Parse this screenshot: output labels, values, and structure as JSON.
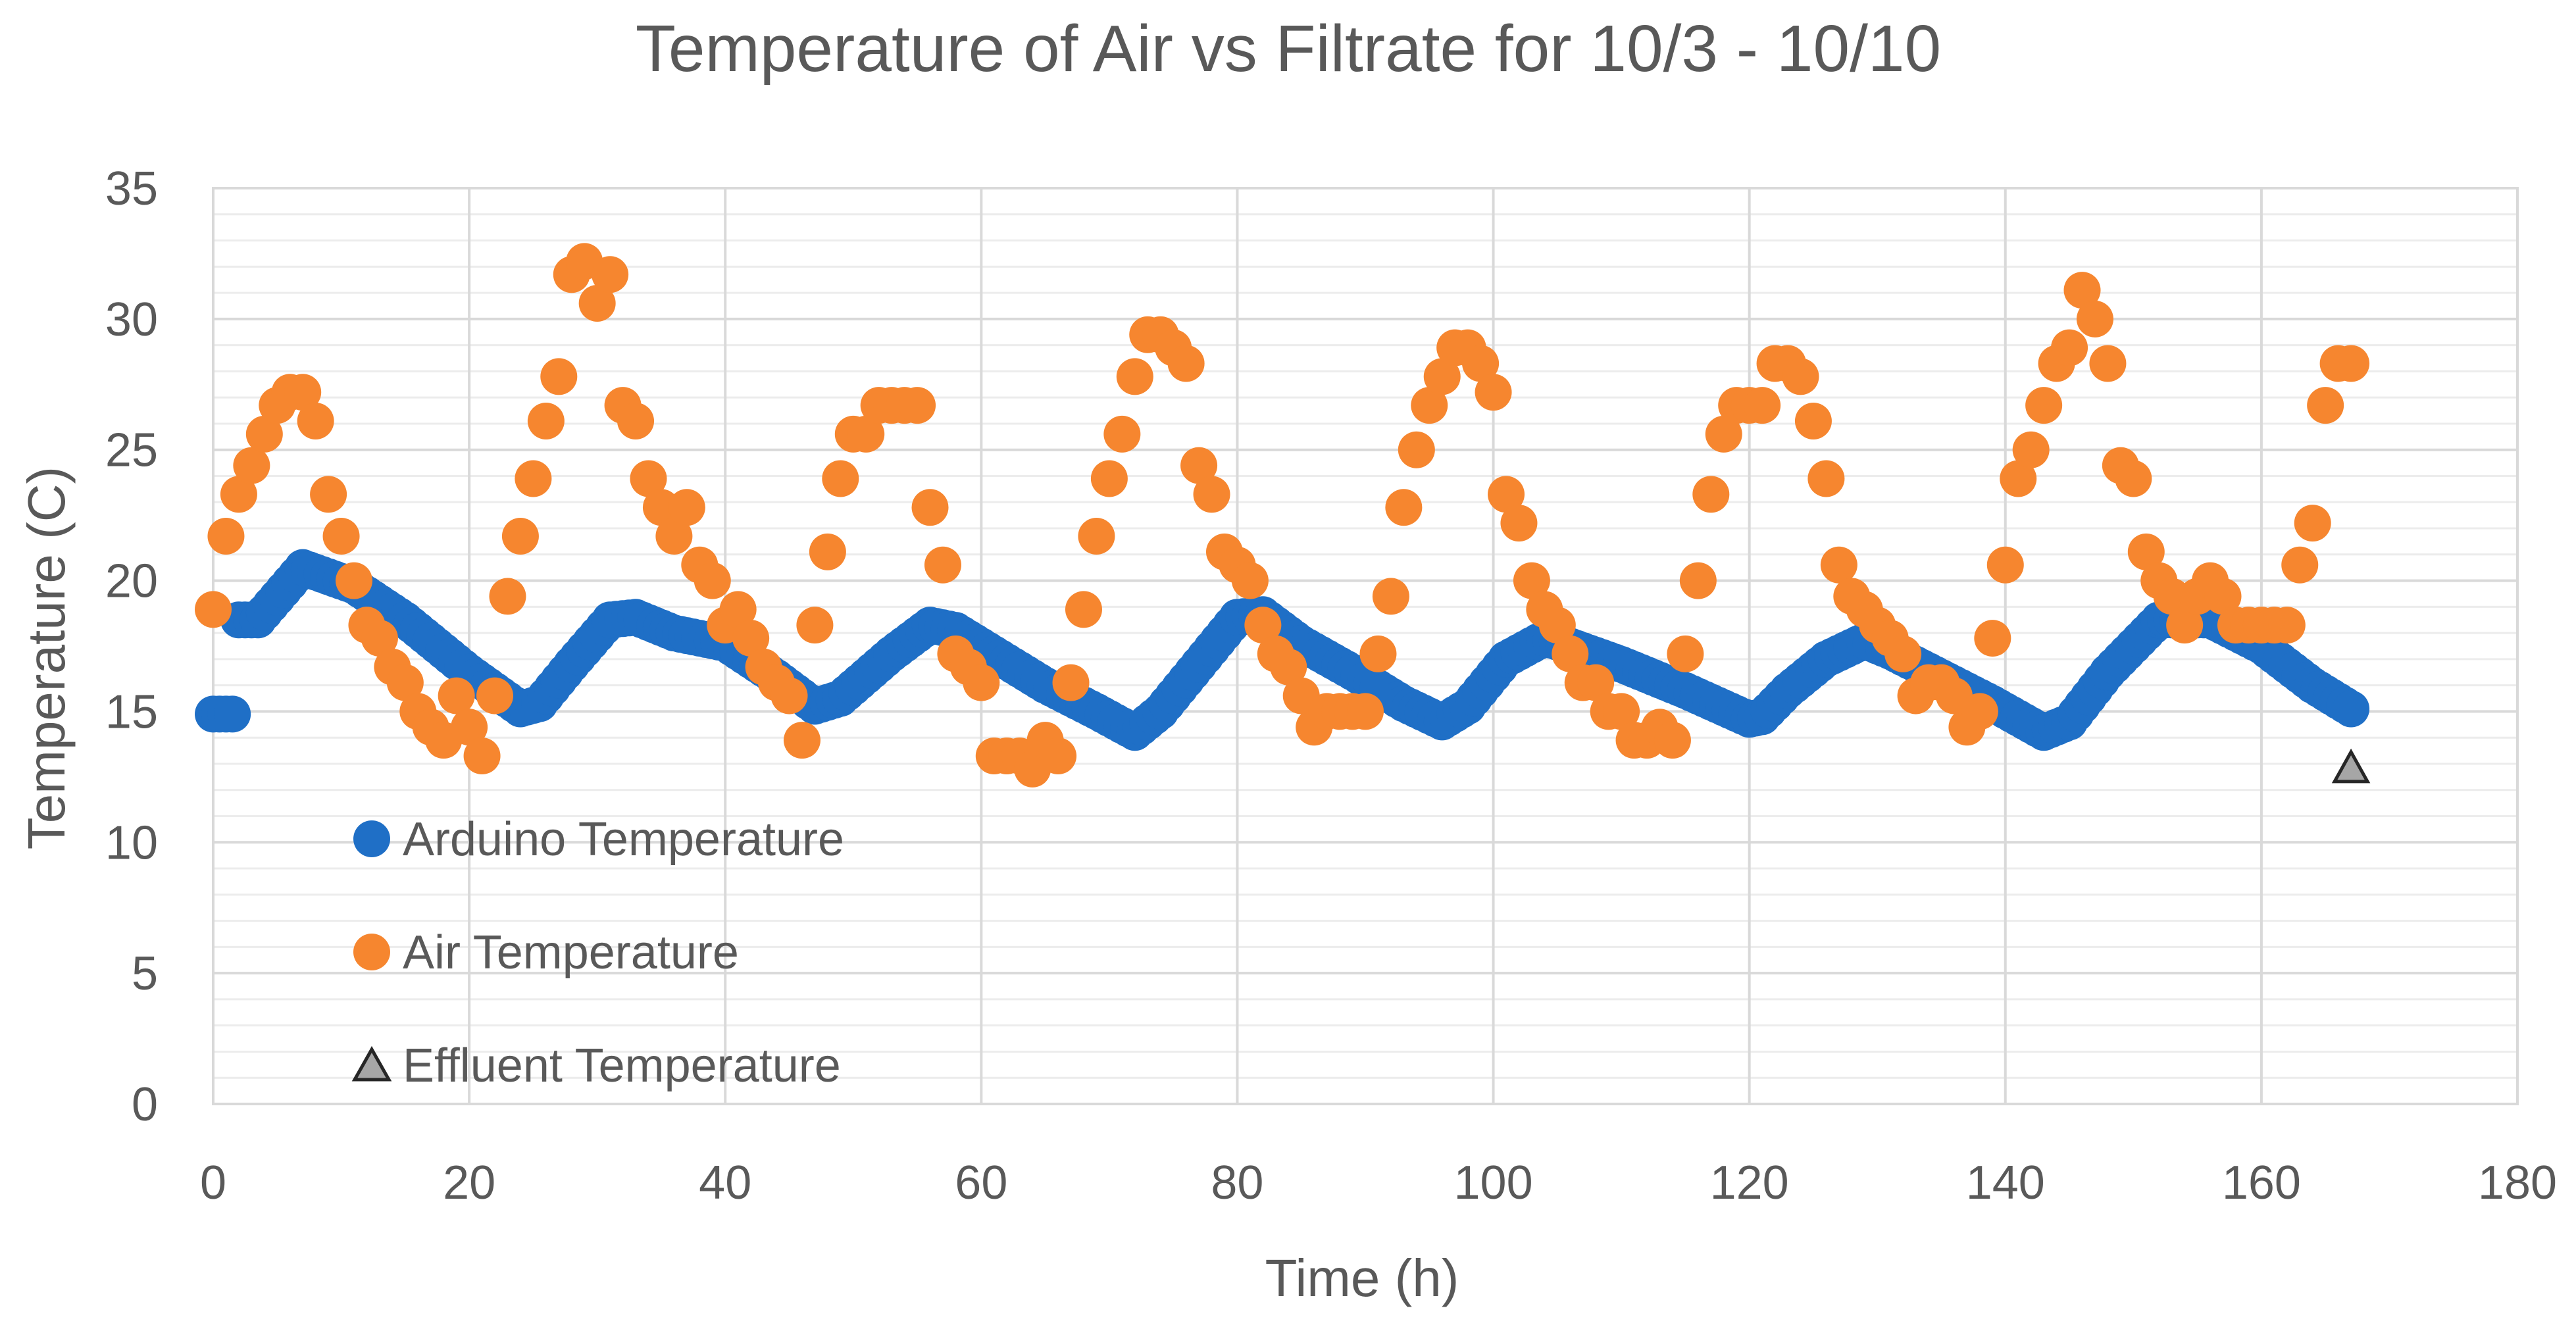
{
  "chart_data": {
    "type": "scatter",
    "title": "Temperature of Air vs Filtrate for 10/3 - 10/10",
    "xlabel": "Time (h)",
    "ylabel": "Temperature (C)",
    "xlim": [
      0,
      180
    ],
    "ylim": [
      0,
      35
    ],
    "x_ticks": [
      "0",
      "20",
      "40",
      "60",
      "80",
      "100",
      "120",
      "140",
      "160",
      "180"
    ],
    "y_ticks": [
      "0",
      "5",
      "10",
      "15",
      "20",
      "25",
      "30",
      "35"
    ],
    "major_grid": true,
    "minor_grid": true,
    "legend_position": "bottom-left inside",
    "colors": {
      "arduino": "#1f6fc6",
      "air": "#f6862f",
      "effluent_fill": "#a6a6a6",
      "effluent_stroke": "#262626",
      "grid_major": "#d9d9d9",
      "grid_minor": "#ececec",
      "text": "#595959"
    },
    "series": [
      {
        "name": "Arduino Temperature",
        "marker": "circle",
        "keypoints": [
          [
            0,
            14.9
          ],
          [
            1.5,
            14.9
          ],
          [
            2,
            18.5
          ],
          [
            3.5,
            18.5
          ],
          [
            7,
            20.5
          ],
          [
            11,
            19.8
          ],
          [
            15,
            18.5
          ],
          [
            20,
            16.5
          ],
          [
            24,
            15.1
          ],
          [
            25.5,
            15.3
          ],
          [
            28,
            16.8
          ],
          [
            31,
            18.5
          ],
          [
            33,
            18.6
          ],
          [
            36,
            18.0
          ],
          [
            40,
            17.6
          ],
          [
            44,
            16.3
          ],
          [
            47,
            15.2
          ],
          [
            49,
            15.5
          ],
          [
            53,
            17.2
          ],
          [
            56,
            18.3
          ],
          [
            58,
            18.1
          ],
          [
            61,
            17.2
          ],
          [
            65,
            16.0
          ],
          [
            69,
            15.0
          ],
          [
            72,
            14.2
          ],
          [
            74,
            15.0
          ],
          [
            77,
            16.8
          ],
          [
            80,
            18.6
          ],
          [
            82,
            18.7
          ],
          [
            85,
            17.6
          ],
          [
            89,
            16.5
          ],
          [
            93,
            15.3
          ],
          [
            96,
            14.6
          ],
          [
            98,
            15.2
          ],
          [
            101,
            17.0
          ],
          [
            104,
            17.8
          ],
          [
            106,
            17.5
          ],
          [
            110,
            16.8
          ],
          [
            115,
            15.8
          ],
          [
            120,
            14.7
          ],
          [
            121,
            14.8
          ],
          [
            123,
            15.8
          ],
          [
            126,
            17.0
          ],
          [
            129,
            17.7
          ],
          [
            131,
            17.3
          ],
          [
            135,
            16.3
          ],
          [
            139,
            15.3
          ],
          [
            143,
            14.2
          ],
          [
            145,
            14.6
          ],
          [
            148,
            16.5
          ],
          [
            152,
            18.5
          ],
          [
            156,
            18.5
          ],
          [
            160,
            17.5
          ],
          [
            164,
            16.0
          ],
          [
            167,
            15.1
          ]
        ]
      },
      {
        "name": "Air Temperature",
        "marker": "circle",
        "points": [
          [
            0,
            18.9
          ],
          [
            1,
            21.7
          ],
          [
            2,
            23.3
          ],
          [
            3,
            24.4
          ],
          [
            4,
            25.6
          ],
          [
            5,
            26.7
          ],
          [
            6,
            27.2
          ],
          [
            7,
            27.2
          ],
          [
            8,
            26.1
          ],
          [
            9,
            23.3
          ],
          [
            10,
            21.7
          ],
          [
            11,
            20.0
          ],
          [
            12,
            18.3
          ],
          [
            13,
            17.8
          ],
          [
            14,
            16.7
          ],
          [
            15,
            16.1
          ],
          [
            16,
            15.0
          ],
          [
            17,
            14.4
          ],
          [
            18,
            13.9
          ],
          [
            19,
            15.6
          ],
          [
            20,
            14.4
          ],
          [
            21,
            13.3
          ],
          [
            22,
            15.6
          ],
          [
            23,
            19.4
          ],
          [
            24,
            21.7
          ],
          [
            25,
            23.9
          ],
          [
            26,
            26.1
          ],
          [
            27,
            27.8
          ],
          [
            28,
            31.7
          ],
          [
            29,
            32.2
          ],
          [
            30,
            30.6
          ],
          [
            31,
            31.7
          ],
          [
            32,
            26.7
          ],
          [
            33,
            26.1
          ],
          [
            34,
            23.9
          ],
          [
            35,
            22.8
          ],
          [
            36,
            21.7
          ],
          [
            37,
            22.8
          ],
          [
            38,
            20.6
          ],
          [
            39,
            20.0
          ],
          [
            40,
            18.3
          ],
          [
            41,
            18.9
          ],
          [
            42,
            17.8
          ],
          [
            43,
            16.7
          ],
          [
            44,
            16.1
          ],
          [
            45,
            15.6
          ],
          [
            46,
            13.9
          ],
          [
            47,
            18.3
          ],
          [
            48,
            21.1
          ],
          [
            49,
            23.9
          ],
          [
            50,
            25.6
          ],
          [
            51,
            25.6
          ],
          [
            52,
            26.7
          ],
          [
            53,
            26.7
          ],
          [
            54,
            26.7
          ],
          [
            55,
            26.7
          ],
          [
            56,
            22.8
          ],
          [
            57,
            20.6
          ],
          [
            58,
            17.2
          ],
          [
            59,
            16.7
          ],
          [
            60,
            16.1
          ],
          [
            61,
            13.3
          ],
          [
            62,
            13.3
          ],
          [
            63,
            13.3
          ],
          [
            64,
            12.8
          ],
          [
            65,
            13.9
          ],
          [
            66,
            13.3
          ],
          [
            67,
            16.1
          ],
          [
            68,
            18.9
          ],
          [
            69,
            21.7
          ],
          [
            70,
            23.9
          ],
          [
            71,
            25.6
          ],
          [
            72,
            27.8
          ],
          [
            73,
            29.4
          ],
          [
            74,
            29.4
          ],
          [
            75,
            28.9
          ],
          [
            76,
            28.3
          ],
          [
            77,
            24.4
          ],
          [
            78,
            23.3
          ],
          [
            79,
            21.1
          ],
          [
            80,
            20.6
          ],
          [
            81,
            20.0
          ],
          [
            82,
            18.3
          ],
          [
            83,
            17.2
          ],
          [
            84,
            16.7
          ],
          [
            85,
            15.6
          ],
          [
            86,
            14.4
          ],
          [
            87,
            15.0
          ],
          [
            88,
            15.0
          ],
          [
            89,
            15.0
          ],
          [
            90,
            15.0
          ],
          [
            91,
            17.2
          ],
          [
            92,
            19.4
          ],
          [
            93,
            22.8
          ],
          [
            94,
            25.0
          ],
          [
            95,
            26.7
          ],
          [
            96,
            27.8
          ],
          [
            97,
            28.9
          ],
          [
            98,
            28.9
          ],
          [
            99,
            28.3
          ],
          [
            100,
            27.2
          ],
          [
            101,
            23.3
          ],
          [
            102,
            22.2
          ],
          [
            103,
            20.0
          ],
          [
            104,
            18.9
          ],
          [
            105,
            18.3
          ],
          [
            106,
            17.2
          ],
          [
            107,
            16.1
          ],
          [
            108,
            16.1
          ],
          [
            109,
            15.0
          ],
          [
            110,
            15.0
          ],
          [
            111,
            13.9
          ],
          [
            112,
            13.9
          ],
          [
            113,
            14.4
          ],
          [
            114,
            13.9
          ],
          [
            115,
            17.2
          ],
          [
            116,
            20.0
          ],
          [
            117,
            23.3
          ],
          [
            118,
            25.6
          ],
          [
            119,
            26.7
          ],
          [
            120,
            26.7
          ],
          [
            121,
            26.7
          ],
          [
            122,
            28.3
          ],
          [
            123,
            28.3
          ],
          [
            124,
            27.8
          ],
          [
            125,
            26.1
          ],
          [
            126,
            23.9
          ],
          [
            127,
            20.6
          ],
          [
            128,
            19.4
          ],
          [
            129,
            18.9
          ],
          [
            130,
            18.3
          ],
          [
            131,
            17.8
          ],
          [
            132,
            17.2
          ],
          [
            133,
            15.6
          ],
          [
            134,
            16.1
          ],
          [
            135,
            16.1
          ],
          [
            136,
            15.6
          ],
          [
            137,
            14.4
          ],
          [
            138,
            15.0
          ],
          [
            139,
            17.8
          ],
          [
            140,
            20.6
          ],
          [
            141,
            23.9
          ],
          [
            142,
            25.0
          ],
          [
            143,
            26.7
          ],
          [
            144,
            28.3
          ],
          [
            145,
            28.9
          ],
          [
            146,
            31.1
          ],
          [
            147,
            30.0
          ],
          [
            148,
            28.3
          ],
          [
            149,
            24.4
          ],
          [
            150,
            23.9
          ],
          [
            151,
            21.1
          ],
          [
            152,
            20.0
          ],
          [
            153,
            19.4
          ],
          [
            154,
            18.3
          ],
          [
            155,
            19.4
          ],
          [
            156,
            20.0
          ],
          [
            157,
            19.4
          ],
          [
            158,
            18.3
          ],
          [
            159,
            18.3
          ],
          [
            160,
            18.3
          ],
          [
            161,
            18.3
          ],
          [
            162,
            18.3
          ],
          [
            163,
            20.6
          ],
          [
            164,
            22.2
          ],
          [
            165,
            26.7
          ],
          [
            166,
            28.3
          ],
          [
            167,
            28.3
          ]
        ]
      },
      {
        "name": "Effluent Temperature",
        "marker": "triangle",
        "points": [
          [
            167,
            12.8
          ]
        ]
      }
    ]
  }
}
